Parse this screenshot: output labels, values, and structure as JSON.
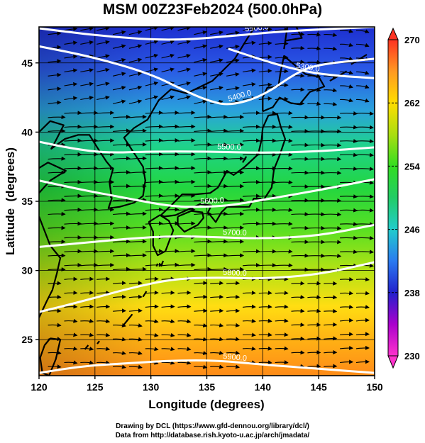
{
  "title": "MSM 00Z23Feb2024 (500.0hPa)",
  "chart_data": {
    "type": "heatmap",
    "title": "MSM 00Z23Feb2024 (500.0hPa)",
    "xlabel": "Longitude (degrees)",
    "ylabel": "Latitude  (degrees)",
    "xlim": [
      120,
      150
    ],
    "ylim": [
      22.4,
      47.6
    ],
    "x_ticks": [
      "120",
      "125",
      "130",
      "135",
      "140",
      "145",
      "150"
    ],
    "y_ticks": [
      "25",
      "30",
      "35",
      "40",
      "45"
    ],
    "colorbar": {
      "range": [
        230,
        270
      ],
      "tick_labels": [
        "270",
        "262",
        "254",
        "246",
        "238",
        "230"
      ],
      "colors": [
        "#ff33cc",
        "#aa00cc",
        "#2222cc",
        "#2a7bf0",
        "#22cccc",
        "#22cc66",
        "#33dd22",
        "#aadd11",
        "#ffdd00",
        "#ff9922",
        "#ff4422"
      ]
    },
    "contours": [
      {
        "label": "5500.0",
        "points": [
          [
            120.0,
            47.5
          ],
          [
            126.0,
            46.9
          ],
          [
            132.0,
            46.6
          ],
          [
            138.0,
            47.0
          ],
          [
            142.0,
            47.3
          ],
          [
            150.0,
            47.6
          ]
        ]
      },
      {
        "label": "5400.0",
        "points": [
          [
            120.0,
            46.2
          ],
          [
            125.0,
            45.4
          ],
          [
            130.0,
            44.2
          ],
          [
            133.0,
            43.0
          ],
          [
            135.0,
            42.3
          ],
          [
            137.0,
            41.9
          ],
          [
            140.0,
            42.6
          ],
          [
            143.0,
            44.3
          ],
          [
            145.0,
            44.9
          ],
          [
            150.0,
            45.3
          ]
        ]
      },
      {
        "label": "5300.0",
        "points": [
          [
            137.0,
            46.0
          ],
          [
            140.0,
            45.2
          ],
          [
            143.0,
            44.5
          ],
          [
            146.0,
            44.1
          ],
          [
            150.0,
            43.9
          ]
        ]
      },
      {
        "label": "5500.0",
        "points": [
          [
            120.0,
            39.3
          ],
          [
            123.0,
            38.8
          ],
          [
            126.0,
            38.5
          ],
          [
            130.0,
            38.6
          ],
          [
            135.0,
            38.6
          ],
          [
            140.0,
            38.5
          ],
          [
            145.0,
            38.6
          ],
          [
            150.0,
            38.9
          ]
        ]
      },
      {
        "label": "5600.0",
        "points": [
          [
            120.0,
            36.5
          ],
          [
            124.0,
            35.8
          ],
          [
            128.0,
            35.2
          ],
          [
            132.0,
            34.6
          ],
          [
            135.0,
            34.6
          ],
          [
            137.0,
            34.7
          ],
          [
            140.0,
            35.1
          ],
          [
            145.0,
            35.8
          ],
          [
            150.0,
            36.6
          ]
        ]
      },
      {
        "label": "5700.0",
        "points": [
          [
            120.0,
            31.7
          ],
          [
            124.0,
            32.0
          ],
          [
            128.0,
            32.3
          ],
          [
            132.0,
            32.5
          ],
          [
            136.0,
            32.4
          ],
          [
            140.0,
            32.3
          ],
          [
            145.0,
            32.5
          ],
          [
            150.0,
            33.3
          ]
        ]
      },
      {
        "label": "5800.0",
        "points": [
          [
            120.0,
            27.0
          ],
          [
            124.0,
            27.8
          ],
          [
            128.0,
            28.7
          ],
          [
            132.0,
            29.4
          ],
          [
            136.0,
            29.5
          ],
          [
            140.0,
            29.4
          ],
          [
            145.0,
            29.7
          ],
          [
            150.0,
            30.6
          ]
        ]
      },
      {
        "label": "5900.0",
        "points": [
          [
            120.0,
            22.6
          ],
          [
            124.0,
            23.1
          ],
          [
            128.0,
            23.3
          ],
          [
            132.0,
            23.5
          ],
          [
            136.0,
            23.5
          ],
          [
            140.0,
            23.2
          ],
          [
            145.0,
            22.9
          ],
          [
            150.0,
            22.6
          ]
        ]
      }
    ],
    "credit_lines": [
      "Drawing by DCL (https://www.gfd-dennou.org/library/dcl/)",
      "Data from http://database.rish.kyoto-u.ac.jp/arch/jmadata/"
    ]
  }
}
